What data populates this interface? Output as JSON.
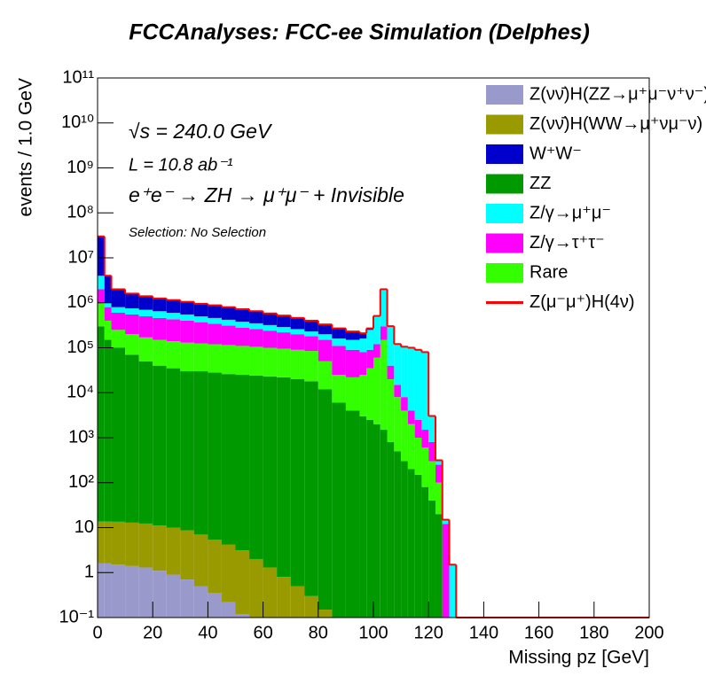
{
  "chart_data": {
    "type": "stacked_histogram",
    "title": "FCCAnalyses: FCC-ee Simulation (Delphes)",
    "xlabel": "Missing pz [GeV]",
    "ylabel": "events / 1.0 GeV",
    "annotations": [
      "√s = 240.0 GeV",
      "L = 10.8 ab⁻¹",
      "e⁺e⁻ → ZH → μ⁺μ⁻ + Invisible",
      "Selection: No Selection"
    ],
    "log_y": true,
    "xlim": [
      0,
      200
    ],
    "xticks": [
      0,
      20,
      40,
      60,
      80,
      100,
      120,
      140,
      160,
      180,
      200
    ],
    "ylim": [
      0.1,
      100000000000
    ],
    "yticks": [
      {
        "value": 0.1,
        "label": "10⁻¹"
      },
      1,
      10,
      {
        "value": 100,
        "label": "10²"
      },
      {
        "value": 1000,
        "label": "10³"
      },
      {
        "value": 10000,
        "label": "10⁴"
      },
      {
        "value": 100000,
        "label": "10⁵"
      },
      {
        "value": 1000000,
        "label": "10⁶"
      },
      {
        "value": 10000000,
        "label": "10⁷"
      },
      {
        "value": 100000000,
        "label": "10⁸"
      },
      {
        "value": 1000000000,
        "label": "10⁹"
      },
      {
        "value": 10000000000,
        "label": "10¹⁰"
      },
      {
        "value": 100000000000,
        "label": "10¹¹"
      }
    ],
    "bins": [
      0,
      2.5,
      5,
      10,
      15,
      20,
      25,
      30,
      35,
      40,
      45,
      50,
      55,
      60,
      65,
      70,
      75,
      80,
      85,
      90,
      95,
      97.5,
      100,
      102.5,
      105,
      107.5,
      110,
      112.5,
      115,
      117.5,
      120,
      122.5,
      125,
      127.5,
      130,
      200
    ],
    "series": [
      {
        "name": "Z(νν̄)H(ZZ→μ⁺μ⁻ν⁺ν⁻)",
        "color": "#9999cc",
        "values": [
          1.6,
          1.6,
          1.5,
          1.4,
          1.3,
          1.1,
          0.9,
          0.7,
          0.5,
          0.35,
          0.22,
          0.12,
          0,
          0,
          0,
          0,
          0,
          0,
          0,
          0,
          0,
          0,
          0,
          0,
          0,
          0,
          0,
          0,
          0,
          0,
          0,
          0,
          0,
          0,
          0
        ]
      },
      {
        "name": "Z(νν̄)H(WW→μ⁺νμ⁻ν)",
        "color": "#999900",
        "values": [
          12,
          12,
          12,
          11.5,
          11,
          10,
          9,
          8,
          6.5,
          5,
          4,
          3,
          2,
          1.3,
          0.8,
          0.5,
          0.3,
          0.15,
          0,
          0,
          0,
          0,
          0,
          0,
          0,
          0,
          0,
          0,
          0,
          0,
          0,
          0,
          0,
          0,
          0
        ]
      },
      {
        "name": "W⁺W⁻",
        "color": "#0000cc",
        "values": [
          26000000,
          3000000,
          1200000,
          850000,
          700000,
          600000,
          550000,
          500000,
          450000,
          420000,
          380000,
          340000,
          300000,
          260000,
          230000,
          200000,
          170000,
          130000,
          110000,
          80000,
          50000,
          20000,
          10000,
          5000,
          2000,
          1000,
          500,
          200,
          100,
          50,
          20,
          5,
          0,
          0,
          0
        ]
      },
      {
        "name": "ZZ",
        "color": "#009900",
        "values": [
          300000,
          150000,
          100000,
          70000,
          50000,
          40000,
          35000,
          30000,
          30000,
          28000,
          26000,
          25000,
          24000,
          23000,
          22000,
          20000,
          18000,
          12000,
          6000,
          4000,
          3000,
          2500,
          2000,
          1500,
          800,
          500,
          300,
          200,
          150,
          80,
          40,
          20,
          0,
          0,
          0
        ]
      },
      {
        "name": "Z/γ→μ⁺μ⁻",
        "color": "#00ffff",
        "values": [
          2000000,
          200000,
          200000,
          200000,
          200000,
          190000,
          170000,
          150000,
          130000,
          120000,
          110000,
          100000,
          90000,
          80000,
          70000,
          60000,
          50000,
          50000,
          50000,
          60000,
          80000,
          160000,
          380000,
          1700000,
          260000,
          105000,
          97000,
          96000,
          87500,
          78500,
          2200,
          50,
          3,
          1.5,
          0
        ]
      },
      {
        "name": "Z/γ→τ⁺τ⁻",
        "color": "#ff00ff",
        "values": [
          1000000,
          400000,
          350000,
          350000,
          330000,
          310000,
          290000,
          270000,
          245000,
          220000,
          195000,
          170000,
          155000,
          140000,
          125000,
          110000,
          95000,
          100000,
          85000,
          68000,
          55000,
          55000,
          60000,
          150000,
          20000,
          7000,
          4000,
          2000,
          1500,
          900,
          500,
          150,
          12,
          0,
          0
        ]
      },
      {
        "name": "Rare",
        "color": "#33ff00",
        "values": [
          700000,
          250000,
          150000,
          130000,
          120000,
          110000,
          105000,
          100000,
          95000,
          92000,
          89000,
          85000,
          81000,
          77000,
          73000,
          70000,
          67000,
          38000,
          19000,
          18000,
          22000,
          32500,
          58000,
          148500,
          19200,
          7500,
          3700,
          1800,
          850,
          520,
          260,
          80,
          0,
          0,
          0
        ]
      },
      {
        "name": "Z(μ⁻μ⁺)H(4ν)",
        "color": "#ff0000",
        "values": [
          400,
          300,
          300,
          300,
          280,
          260,
          250,
          240,
          230,
          220,
          210,
          200,
          190,
          180,
          170,
          160,
          150,
          140,
          130,
          120,
          110,
          100,
          100,
          90,
          80,
          70,
          60,
          50,
          40,
          30,
          20,
          10,
          0,
          0,
          0
        ]
      }
    ]
  }
}
